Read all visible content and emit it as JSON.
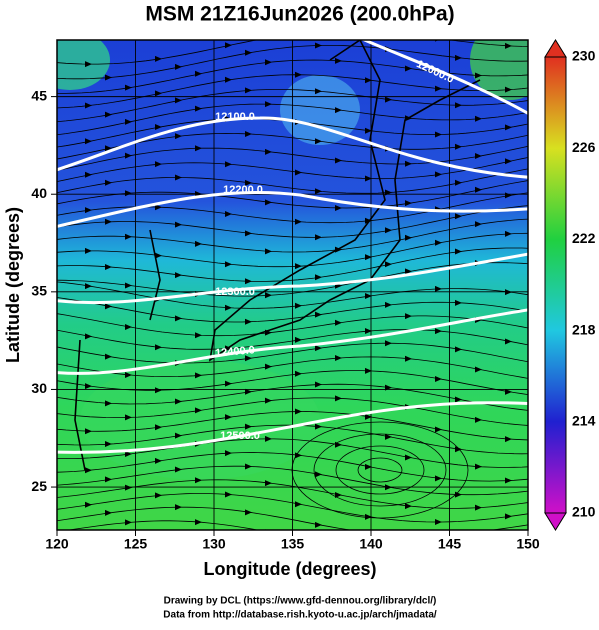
{
  "title": "MSM 21Z16Jun2026 (200.0hPa)",
  "x_axis": {
    "label": "Longitude (degrees)",
    "lim": [
      120,
      150
    ],
    "ticks": [
      120,
      125,
      130,
      135,
      140,
      145,
      150
    ]
  },
  "y_axis": {
    "label": "Latitude  (degrees)",
    "lim": [
      22.8,
      47.9
    ],
    "ticks": [
      25,
      30,
      35,
      40,
      45
    ]
  },
  "colorbar": {
    "lim": [
      210,
      230
    ],
    "ticks": [
      210,
      214,
      218,
      222,
      226,
      230
    ]
  },
  "contours": [
    {
      "value": 12000,
      "label": "12000.0"
    },
    {
      "value": 12100,
      "label": "12100.0"
    },
    {
      "value": 12200,
      "label": "12200.0"
    },
    {
      "value": 12300,
      "label": "12300.0"
    },
    {
      "value": 12400,
      "label": "12400.0"
    },
    {
      "value": 12500,
      "label": "12500.0"
    }
  ],
  "credits": [
    "Drawing by DCL (https://www.gfd-dennou.org/library/dcl/)",
    "Data from http://database.rish.kyoto-u.ac.jp/arch/jmadata/"
  ]
}
